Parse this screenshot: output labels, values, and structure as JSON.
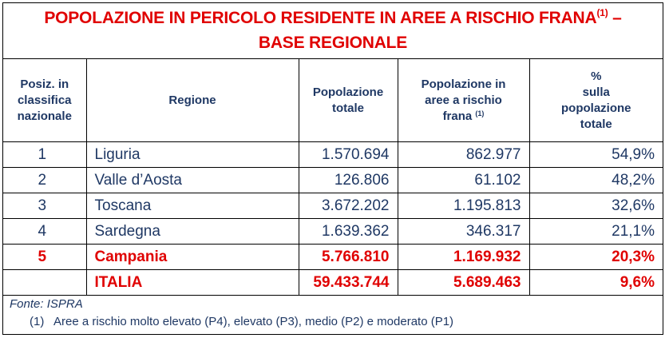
{
  "title": {
    "line1": "POPOLAZIONE IN PERICOLO RESIDENTE IN AREE A RISCHIO FRANA",
    "sup": "(1)",
    "line1_end": " –",
    "line2": "BASE REGIONALE"
  },
  "headers": {
    "pos": [
      "Posiz. in",
      "classifica",
      "nazionale"
    ],
    "regione": "Regione",
    "pop_totale": [
      "Popolazione",
      "totale"
    ],
    "pop_rischio": [
      "Popolazione in",
      "aree a rischio",
      "frana"
    ],
    "pop_rischio_sup": "(1)",
    "perc": [
      "%",
      "sulla",
      "popolazione",
      "totale"
    ]
  },
  "rows": [
    {
      "pos": "1",
      "regione": "Liguria",
      "totale": "1.570.694",
      "rischio": "862.977",
      "perc": "54,9%"
    },
    {
      "pos": "2",
      "regione": "Valle d’Aosta",
      "totale": "126.806",
      "rischio": "61.102",
      "perc": "48,2%"
    },
    {
      "pos": "3",
      "regione": "Toscana",
      "totale": "3.672.202",
      "rischio": "1.195.813",
      "perc": "32,6%"
    },
    {
      "pos": "4",
      "regione": "Sardegna",
      "totale": "1.639.362",
      "rischio": "346.317",
      "perc": "21,1%"
    },
    {
      "pos": "5",
      "regione": "Campania",
      "totale": "5.766.810",
      "rischio": "1.169.932",
      "perc": "20,3%"
    },
    {
      "pos": "",
      "regione": "ITALIA",
      "totale": "59.433.744",
      "rischio": "5.689.463",
      "perc": "9,6%"
    }
  ],
  "footer": {
    "source": "Fonte: ISPRA",
    "note_num": "(1)",
    "note_text": "Aree a rischio molto elevato (P4), elevato (P3), medio (P2) e moderato (P1)"
  },
  "colors": {
    "title_red": "#e00000",
    "text_blue": "#1f3864"
  }
}
